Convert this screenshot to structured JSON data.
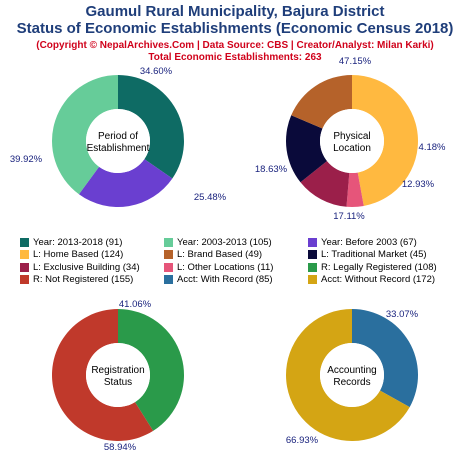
{
  "header": {
    "title_line1": "Gaumul Rural Municipality, Bajura District",
    "title_line2": "Status of Economic Establishments (Economic Census 2018)",
    "copyright": "(Copyright © NepalArchives.Com | Data Source: CBS | Creator/Analyst: Milan Karki)",
    "total": "Total Economic Establishments: 263"
  },
  "colors": {
    "title": "#1f3e7a",
    "subtitle": "#d0021b",
    "percent_label": "#1a237e"
  },
  "chart_data": [
    {
      "type": "pie",
      "center_label": [
        "Period of",
        "Establishment"
      ],
      "slices": [
        {
          "label": "Year: 2013-2018",
          "value": 91,
          "percent": "34.60%",
          "color": "#0e6b64"
        },
        {
          "label": "Year: Before 2003",
          "value": 67,
          "percent": "25.48%",
          "color": "#6a3fd0"
        },
        {
          "label": "Year: 2003-2013",
          "value": 105,
          "percent": "39.92%",
          "color": "#66cc99"
        }
      ]
    },
    {
      "type": "pie",
      "center_label": [
        "Physical",
        "Location"
      ],
      "slices": [
        {
          "label": "L: Home Based",
          "value": 124,
          "percent": "47.15%",
          "color": "#ffb940"
        },
        {
          "label": "L: Other Locations",
          "value": 11,
          "percent": "4.18%",
          "color": "#e6557a"
        },
        {
          "label": "L: Exclusive Building",
          "value": 34,
          "percent": "12.93%",
          "color": "#9b1f4a"
        },
        {
          "label": "L: Traditional Market",
          "value": 45,
          "percent": "17.11%",
          "color": "#0a0a3a"
        },
        {
          "label": "L: Brand Based",
          "value": 49,
          "percent": "18.63%",
          "color": "#b5622a"
        }
      ]
    },
    {
      "type": "pie",
      "center_label": [
        "Registration",
        "Status"
      ],
      "slices": [
        {
          "label": "R: Legally Registered",
          "value": 108,
          "percent": "41.06%",
          "color": "#2a9a4a"
        },
        {
          "label": "R: Not Registered",
          "value": 155,
          "percent": "58.94%",
          "color": "#c0392b"
        }
      ]
    },
    {
      "type": "pie",
      "center_label": [
        "Accounting",
        "Records"
      ],
      "slices": [
        {
          "label": "Acct: With Record",
          "value": 85,
          "percent": "33.07%",
          "color": "#2a6f9e"
        },
        {
          "label": "Acct: Without Record",
          "value": 172,
          "percent": "66.93%",
          "color": "#d4a514"
        }
      ]
    }
  ],
  "legend": [
    {
      "text": "Year: 2013-2018 (91)",
      "color": "#0e6b64"
    },
    {
      "text": "Year: 2003-2013 (105)",
      "color": "#66cc99"
    },
    {
      "text": "Year: Before 2003 (67)",
      "color": "#6a3fd0"
    },
    {
      "text": "L: Home Based (124)",
      "color": "#ffb940"
    },
    {
      "text": "L: Brand Based (49)",
      "color": "#b5622a"
    },
    {
      "text": "L: Traditional Market (45)",
      "color": "#0a0a3a"
    },
    {
      "text": "L: Exclusive Building (34)",
      "color": "#9b1f4a"
    },
    {
      "text": "L: Other Locations (11)",
      "color": "#e6557a"
    },
    {
      "text": "R: Legally Registered (108)",
      "color": "#2a9a4a"
    },
    {
      "text": "R: Not Registered (155)",
      "color": "#c0392b"
    },
    {
      "text": "Acct: With Record (85)",
      "color": "#2a6f9e"
    },
    {
      "text": "Acct: Without Record (172)",
      "color": "#d4a514"
    }
  ]
}
